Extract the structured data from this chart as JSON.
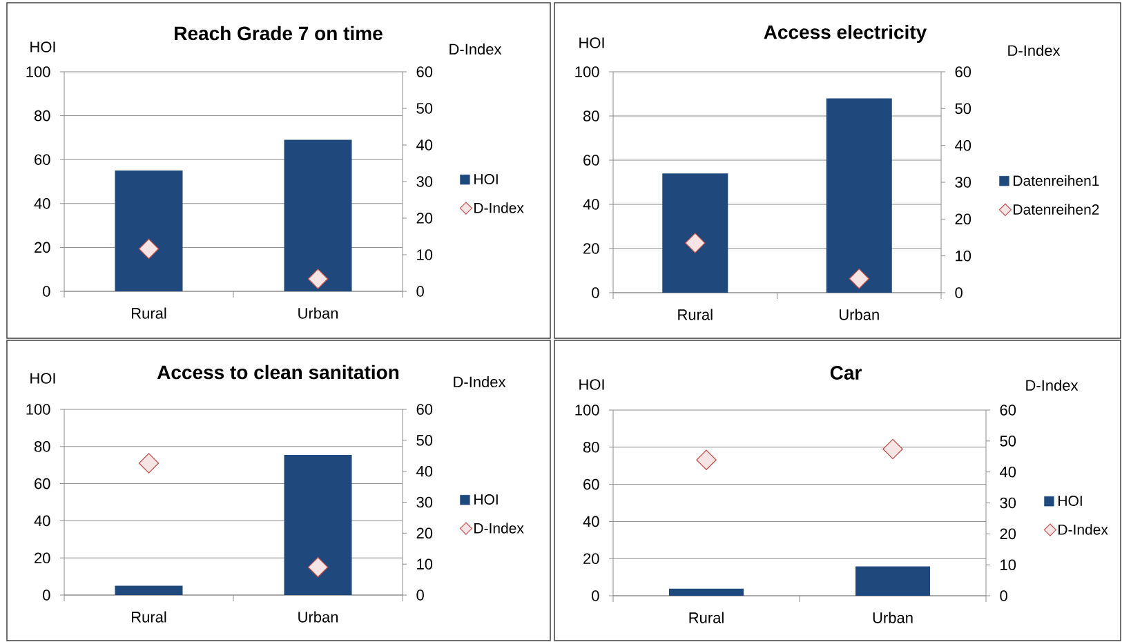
{
  "chart_data": [
    {
      "type": "bar",
      "title": "Reach Grade 7 on time",
      "ylabel": "HOI",
      "y2label": "D-Index",
      "categories": [
        "Rural",
        "Urban"
      ],
      "series": [
        {
          "name": "HOI",
          "color": "#1f497d",
          "values": [
            55,
            69
          ]
        },
        {
          "name": "D-Index",
          "type": "scatter",
          "axis": "y2",
          "marker": "diamond",
          "color": "#c0504d",
          "values": [
            11.6,
            3.4
          ]
        }
      ],
      "ylim": [
        0,
        100
      ],
      "yticks": [
        0,
        20,
        40,
        60,
        80,
        100
      ],
      "y2lim": [
        0,
        60
      ],
      "y2ticks": [
        0,
        10,
        20,
        30,
        40,
        50,
        60
      ],
      "grid": "y",
      "legend": "right"
    },
    {
      "type": "bar",
      "title": "Access electricity",
      "ylabel": "HOI",
      "y2label": "D-Index",
      "categories": [
        "Rural",
        "Urban"
      ],
      "series": [
        {
          "name": "Datenreihen1",
          "color": "#1f497d",
          "values": [
            54,
            88
          ]
        },
        {
          "name": "Datenreihen2",
          "type": "scatter",
          "axis": "y2",
          "marker": "diamond",
          "color": "#c0504d",
          "values": [
            13.5,
            3.8
          ]
        }
      ],
      "ylim": [
        0,
        100
      ],
      "yticks": [
        0,
        20,
        40,
        60,
        80,
        100
      ],
      "y2lim": [
        0,
        60
      ],
      "y2ticks": [
        0,
        10,
        20,
        30,
        40,
        50,
        60
      ],
      "grid": "y",
      "legend": "right"
    },
    {
      "type": "bar",
      "title": "Access to clean sanitation",
      "ylabel": "HOI",
      "y2label": "D-Index",
      "categories": [
        "Rural",
        "Urban"
      ],
      "series": [
        {
          "name": "HOI",
          "color": "#1f497d",
          "values": [
            5,
            75.5
          ]
        },
        {
          "name": "D-Index",
          "type": "scatter",
          "axis": "y2",
          "marker": "diamond",
          "color": "#c0504d",
          "values": [
            42.6,
            9.0
          ]
        }
      ],
      "ylim": [
        0,
        100
      ],
      "yticks": [
        0,
        20,
        40,
        60,
        80,
        100
      ],
      "y2lim": [
        0,
        60
      ],
      "y2ticks": [
        0,
        10,
        20,
        30,
        40,
        50,
        60
      ],
      "grid": "y",
      "legend": "right"
    },
    {
      "type": "bar",
      "title": "Car",
      "ylabel": "HOI",
      "y2label": "D-Index",
      "categories": [
        "Rural",
        "Urban"
      ],
      "series": [
        {
          "name": "HOI",
          "color": "#1f497d",
          "values": [
            3.8,
            15.8
          ]
        },
        {
          "name": "D-Index",
          "type": "scatter",
          "axis": "y2",
          "marker": "diamond",
          "color": "#c0504d",
          "values": [
            43.9,
            47.4
          ]
        }
      ],
      "ylim": [
        0,
        100
      ],
      "yticks": [
        0,
        20,
        40,
        60,
        80,
        100
      ],
      "y2lim": [
        0,
        60
      ],
      "y2ticks": [
        0,
        10,
        20,
        30,
        40,
        50,
        60
      ],
      "grid": "y",
      "legend": "right"
    }
  ]
}
